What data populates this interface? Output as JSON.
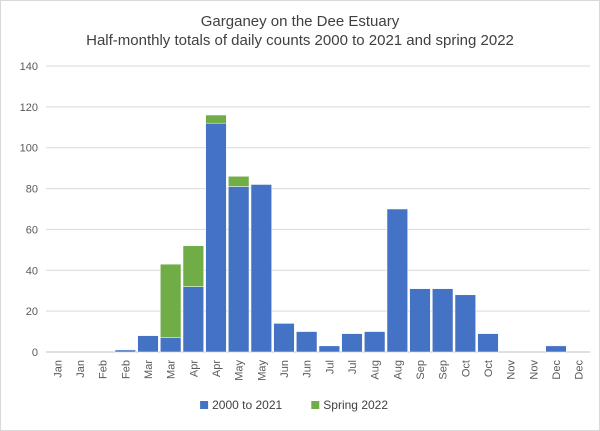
{
  "chart_data": {
    "type": "bar",
    "stacked": true,
    "title": "Garganey on the Dee Estuary",
    "subtitle": "Half-monthly  totals of daily counts 2000 to 2021 and spring 2022",
    "categories": [
      "Jan",
      "Jan",
      "Feb",
      "Feb",
      "Mar",
      "Mar",
      "Apr",
      "Apr",
      "May",
      "May",
      "Jun",
      "Jun",
      "Jul",
      "Jul",
      "Aug",
      "Aug",
      "Sep",
      "Sep",
      "Oct",
      "Oct",
      "Nov",
      "Nov",
      "Dec",
      "Dec"
    ],
    "series": [
      {
        "name": "2000 to 2021",
        "color": "#4472c4",
        "values": [
          0,
          0,
          0,
          1,
          8,
          7,
          32,
          112,
          81,
          82,
          14,
          10,
          3,
          9,
          10,
          70,
          31,
          31,
          28,
          9,
          0,
          0,
          3,
          0
        ]
      },
      {
        "name": "Spring 2022",
        "color": "#70ad47",
        "values": [
          0,
          0,
          0,
          0,
          0,
          36,
          20,
          4,
          5,
          0,
          0,
          0,
          0,
          0,
          0,
          0,
          0,
          0,
          0,
          0,
          0,
          0,
          0,
          0
        ]
      }
    ],
    "ylim": [
      0,
      140
    ],
    "yticks": [
      0,
      20,
      40,
      60,
      80,
      100,
      120,
      140
    ],
    "grid": true,
    "legend": "bottom"
  }
}
